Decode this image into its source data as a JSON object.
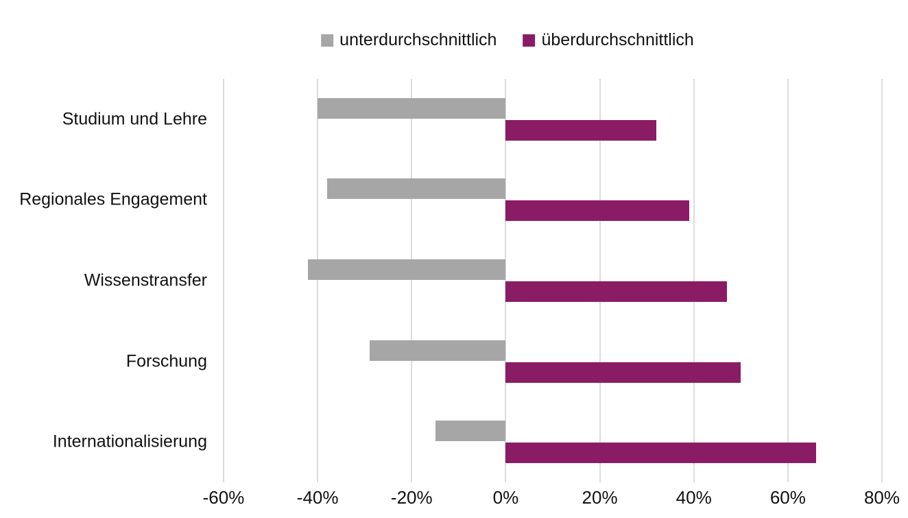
{
  "chart_data": {
    "type": "bar",
    "orientation": "horizontal",
    "title": "",
    "categories": [
      "Studium und Lehre",
      "Regionales Engagement",
      "Wissenstransfer",
      "Forschung",
      "Internationalisierung"
    ],
    "series": [
      {
        "name": "unterdurchschnittlich",
        "color": "#A6A6A6",
        "values": [
          -40,
          -38,
          -42,
          -29,
          -15
        ]
      },
      {
        "name": "überdurchschnittlich",
        "color": "#8A1C66",
        "values": [
          32,
          39,
          47,
          50,
          66
        ]
      }
    ],
    "xlim": [
      -60,
      80
    ],
    "x_ticks": [
      -60,
      -40,
      -20,
      0,
      20,
      40,
      60,
      80
    ],
    "x_tick_labels": [
      "-60%",
      "-40%",
      "-20%",
      "0%",
      "20%",
      "40%",
      "60%",
      "80%"
    ],
    "xlabel": "",
    "ylabel": "",
    "grid": "vertical",
    "gridline_color": "#DCDCDC",
    "legend_position": "top",
    "background_color": "#FFFFFF",
    "text_color": "#111111"
  }
}
